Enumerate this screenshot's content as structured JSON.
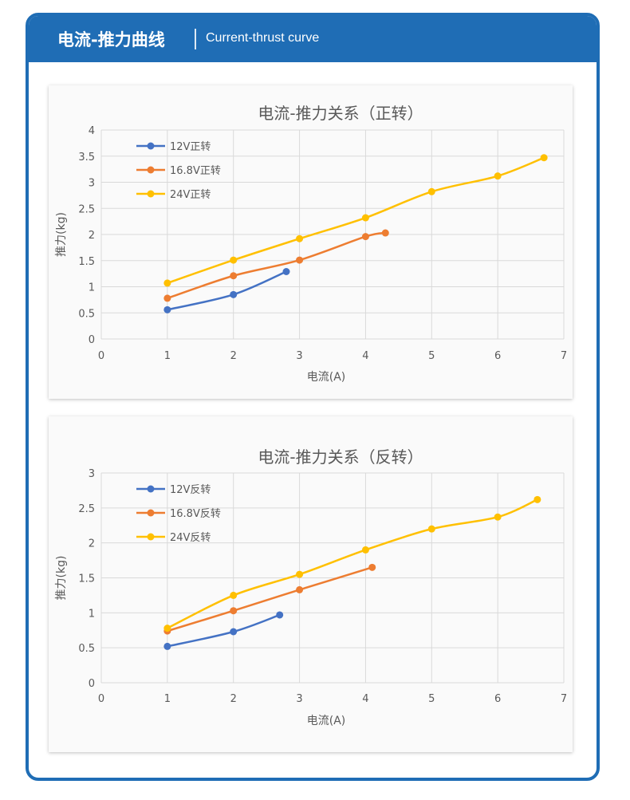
{
  "header": {
    "title_cn": "电流-推力曲线",
    "title_en": "Current-thrust curve"
  },
  "colors": {
    "frame": "#1f6db5",
    "series": [
      "#4472c4",
      "#ed7d31",
      "#ffc000"
    ],
    "grid": "#d9d9d9",
    "text": "#595959"
  },
  "chart_data": [
    {
      "type": "line",
      "title": "电流-推力关系（正转）",
      "xlabel": "电流(A)",
      "ylabel": "推力(kg)",
      "xlim": [
        0,
        7
      ],
      "ylim": [
        0,
        4
      ],
      "xticks": [
        "0",
        "1",
        "2",
        "3",
        "4",
        "5",
        "6",
        "7"
      ],
      "yticks": [
        "0",
        "0.5",
        "1",
        "1.5",
        "2",
        "2.5",
        "3",
        "3.5",
        "4"
      ],
      "grid": true,
      "legend": "top-left",
      "series": [
        {
          "name": "12V正转",
          "x": [
            1,
            2,
            2.8
          ],
          "y": [
            0.56,
            0.85,
            1.29
          ]
        },
        {
          "name": "16.8V正转",
          "x": [
            1,
            2,
            3,
            4,
            4.3
          ],
          "y": [
            0.78,
            1.21,
            1.51,
            1.96,
            2.03
          ]
        },
        {
          "name": "24V正转",
          "x": [
            1,
            2,
            3,
            4,
            5,
            6,
            6.7
          ],
          "y": [
            1.07,
            1.51,
            1.92,
            2.32,
            2.82,
            3.12,
            3.47
          ]
        }
      ]
    },
    {
      "type": "line",
      "title": "电流-推力关系（反转）",
      "xlabel": "电流(A)",
      "ylabel": "推力(kg)",
      "xlim": [
        0,
        7
      ],
      "ylim": [
        0,
        3
      ],
      "xticks": [
        "0",
        "1",
        "2",
        "3",
        "4",
        "5",
        "6",
        "7"
      ],
      "yticks": [
        "0",
        "0.5",
        "1",
        "1.5",
        "2",
        "2.5",
        "3"
      ],
      "grid": true,
      "legend": "top-left",
      "series": [
        {
          "name": "12V反转",
          "x": [
            1,
            2,
            2.7
          ],
          "y": [
            0.52,
            0.73,
            0.97
          ]
        },
        {
          "name": "16.8V反转",
          "x": [
            1,
            2,
            3,
            4.1
          ],
          "y": [
            0.74,
            1.03,
            1.33,
            1.65
          ]
        },
        {
          "name": "24V反转",
          "x": [
            1,
            2,
            3,
            4,
            5,
            6,
            6.6
          ],
          "y": [
            0.78,
            1.25,
            1.55,
            1.9,
            2.2,
            2.37,
            2.62
          ]
        }
      ]
    }
  ]
}
